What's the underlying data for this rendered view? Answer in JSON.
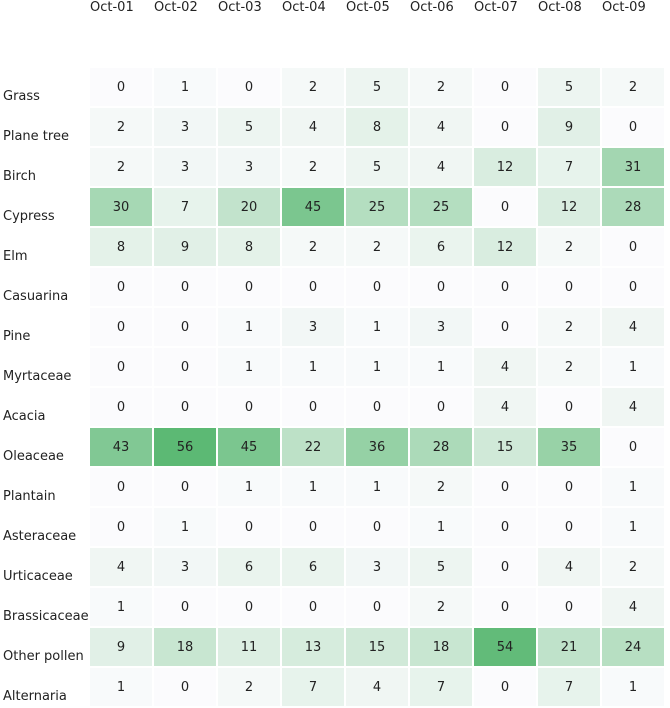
{
  "chart_data": {
    "type": "heatmap",
    "title": "",
    "columns": [
      "Oct-01",
      "Oct-02",
      "Oct-03",
      "Oct-04",
      "Oct-05",
      "Oct-06",
      "Oct-07",
      "Oct-08",
      "Oct-09"
    ],
    "rows": [
      "Grass",
      "Plane tree",
      "Birch",
      "Cypress",
      "Elm",
      "Casuarina",
      "Pine",
      "Myrtaceae",
      "Acacia",
      "Oleaceae",
      "Plantain",
      "Asteraceae",
      "Urticaceae",
      "Brassicaceae",
      "Other pollen",
      "Alternaria"
    ],
    "values": [
      [
        0,
        1,
        0,
        2,
        5,
        2,
        0,
        5,
        2
      ],
      [
        2,
        3,
        5,
        4,
        8,
        4,
        0,
        9,
        0
      ],
      [
        2,
        3,
        3,
        2,
        5,
        4,
        12,
        7,
        31
      ],
      [
        30,
        7,
        20,
        45,
        25,
        25,
        0,
        12,
        28
      ],
      [
        8,
        9,
        8,
        2,
        2,
        6,
        12,
        2,
        0
      ],
      [
        0,
        0,
        0,
        0,
        0,
        0,
        0,
        0,
        0
      ],
      [
        0,
        0,
        1,
        3,
        1,
        3,
        0,
        2,
        4
      ],
      [
        0,
        0,
        1,
        1,
        1,
        1,
        4,
        2,
        1
      ],
      [
        0,
        0,
        0,
        0,
        0,
        0,
        4,
        0,
        4
      ],
      [
        43,
        56,
        45,
        22,
        36,
        28,
        15,
        35,
        0
      ],
      [
        0,
        0,
        1,
        1,
        1,
        2,
        0,
        0,
        1
      ],
      [
        0,
        1,
        0,
        0,
        0,
        1,
        0,
        0,
        1
      ],
      [
        4,
        3,
        6,
        6,
        3,
        5,
        0,
        4,
        2
      ],
      [
        1,
        0,
        0,
        0,
        0,
        2,
        0,
        0,
        4
      ],
      [
        9,
        18,
        11,
        13,
        15,
        18,
        54,
        21,
        24
      ],
      [
        1,
        0,
        2,
        7,
        4,
        7,
        0,
        7,
        1
      ]
    ],
    "color_scale": {
      "min": 0,
      "max": 56,
      "low_color": "#fbfbfd",
      "high_color": "#5cb974"
    }
  }
}
